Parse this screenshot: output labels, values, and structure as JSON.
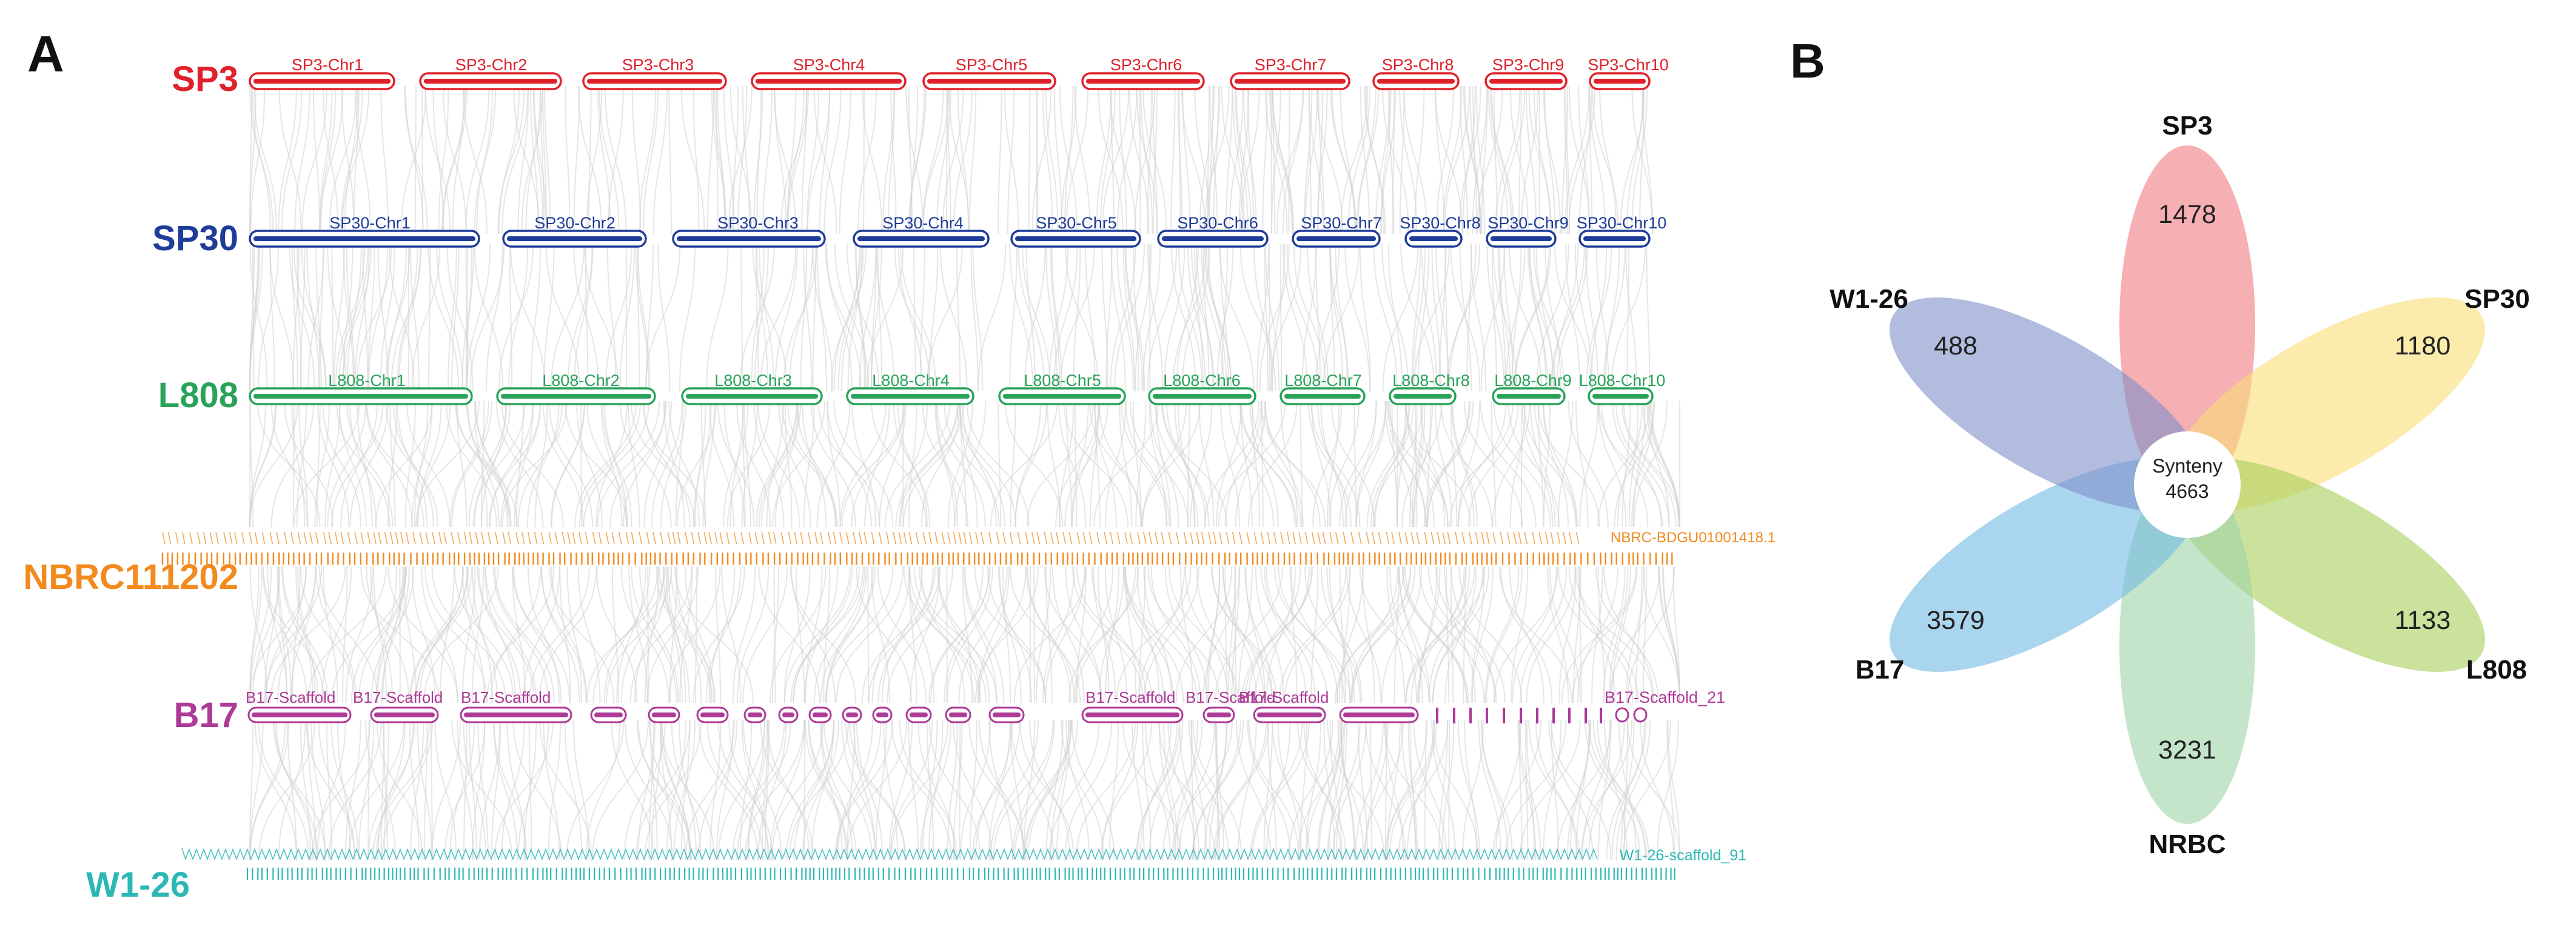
{
  "panels": {
    "a": "A",
    "b": "B"
  },
  "colors": {
    "SP3": "#e0202a",
    "SP30": "#1f3c98",
    "L808": "#2aa35a",
    "NBRC": "#f28a1e",
    "B17": "#ad3a97",
    "W1": "#2bb8b5",
    "link": "#d2d2d2"
  },
  "genomes": {
    "sp3": {
      "label": "SP3",
      "chromosomes": [
        "SP3-Chr1",
        "SP3-Chr2",
        "SP3-Chr3",
        "SP3-Chr4",
        "SP3-Chr5",
        "SP3-Chr6",
        "SP3-Chr7",
        "SP3-Chr8",
        "SP3-Chr9",
        "SP3-Chr10"
      ]
    },
    "sp30": {
      "label": "SP30",
      "chromosomes": [
        "SP30-Chr1",
        "SP30-Chr2",
        "SP30-Chr3",
        "SP30-Chr4",
        "SP30-Chr5",
        "SP30-Chr6",
        "SP30-Chr7",
        "SP30-Chr8",
        "SP30-Chr9",
        "SP30-Chr10"
      ]
    },
    "l808": {
      "label": "L808",
      "chromosomes": [
        "L808-Chr1",
        "L808-Chr2",
        "L808-Chr3",
        "L808-Chr4",
        "L808-Chr5",
        "L808-Chr6",
        "L808-Chr7",
        "L808-Chr8",
        "L808-Chr9",
        "L808-Chr10"
      ]
    },
    "nbrc": {
      "label": "NBRC111202",
      "last_contig": "NBRC-BDGU01001418.1"
    },
    "b17": {
      "label": "B17",
      "scaffold_prefix": "B17-Scaffold",
      "last_scaffold": "B17-Scaffold_21"
    },
    "w1": {
      "label": "W1-26",
      "last_scaffold": "W1-26-scaffold_91"
    }
  },
  "venn": {
    "center_label": "Synteny",
    "center_value": "4663",
    "petals": [
      {
        "name": "SP3",
        "value": "1478",
        "color": "#f07a80"
      },
      {
        "name": "SP30",
        "value": "1180",
        "color": "#f8de76"
      },
      {
        "name": "L808",
        "value": "1133",
        "color": "#a6cf5a"
      },
      {
        "name": "NRBC",
        "value": "3231",
        "color": "#9fd3a9"
      },
      {
        "name": "B17",
        "value": "3579",
        "color": "#72b9e3"
      },
      {
        "name": "W1-26",
        "value": "488",
        "color": "#7f8fc8"
      }
    ]
  }
}
